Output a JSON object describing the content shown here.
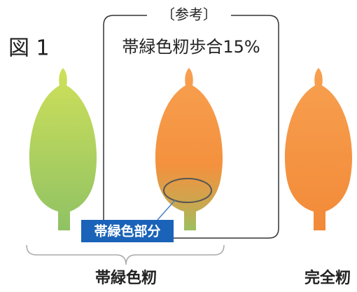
{
  "figure_label": "図 1",
  "reference_label": "〔参考〕",
  "reference_caption": "帯緑色籾歩合15%",
  "callout_label": "帯緑色部分",
  "groups": [
    {
      "label": "帯緑色籾"
    },
    {
      "label": "完全籾"
    }
  ]
}
